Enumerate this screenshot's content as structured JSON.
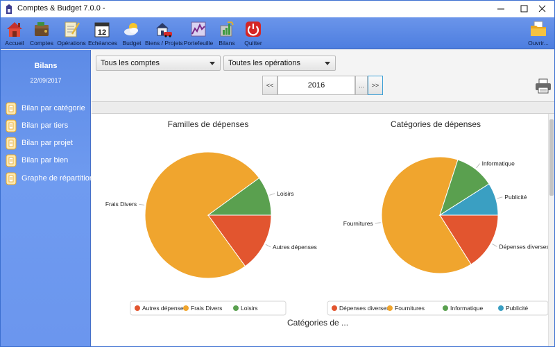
{
  "window": {
    "title": "Comptes & Budget 7.0.0 -"
  },
  "toolbar": {
    "items": [
      {
        "label": "Accueil",
        "icon": "home-icon"
      },
      {
        "label": "Comptes",
        "icon": "wallet-icon"
      },
      {
        "label": "Opérations",
        "icon": "notepad-icon"
      },
      {
        "label": "Echéances",
        "icon": "calendar-icon"
      },
      {
        "label": "Budget",
        "icon": "weather-icon"
      },
      {
        "label": "Biens / Projets",
        "icon": "house-car-icon"
      },
      {
        "label": "Portefeuille",
        "icon": "stock-chart-icon"
      },
      {
        "label": "Bilans",
        "icon": "report-icon"
      },
      {
        "label": "Quitter",
        "icon": "power-icon"
      },
      {
        "label": "Ouvrir...",
        "icon": "folder-icon"
      }
    ],
    "calendar_day": "12"
  },
  "sidebar": {
    "title": "Bilans",
    "date": "22/09/2017",
    "items": [
      {
        "label": "Bilan par catégorie"
      },
      {
        "label": "Bilan par tiers"
      },
      {
        "label": "Bilan par projet"
      },
      {
        "label": "Bilan par bien"
      },
      {
        "label": "Graphe de répartition"
      }
    ]
  },
  "filters": {
    "accounts": "Tous les comptes",
    "operations": "Toutes les opérations"
  },
  "year_nav": {
    "prev": "<<",
    "year": "2016",
    "pick": "...",
    "next": ">>"
  },
  "partial_heading": "Catégories de ...",
  "colors": {
    "orange": "#f0a52e",
    "green": "#5aa04f",
    "red": "#e2552f",
    "blue": "#3a9fc2",
    "toolbar": "#5a88e6"
  },
  "chart_data": [
    {
      "type": "pie",
      "title": "Familles de dépenses",
      "categories": [
        "Autres dépenses",
        "Frais Divers",
        "Loisirs"
      ],
      "values": [
        15,
        75,
        10
      ],
      "colors": [
        "#e2552f",
        "#f0a52e",
        "#5aa04f"
      ],
      "legend": "bottom"
    },
    {
      "type": "pie",
      "title": "Catégories de dépenses",
      "categories": [
        "Dépenses diverses",
        "Fournitures",
        "Informatique",
        "Publicité"
      ],
      "values": [
        16,
        64,
        11,
        9
      ],
      "colors": [
        "#e2552f",
        "#f0a52e",
        "#5aa04f",
        "#3a9fc2"
      ],
      "legend": "bottom"
    }
  ]
}
